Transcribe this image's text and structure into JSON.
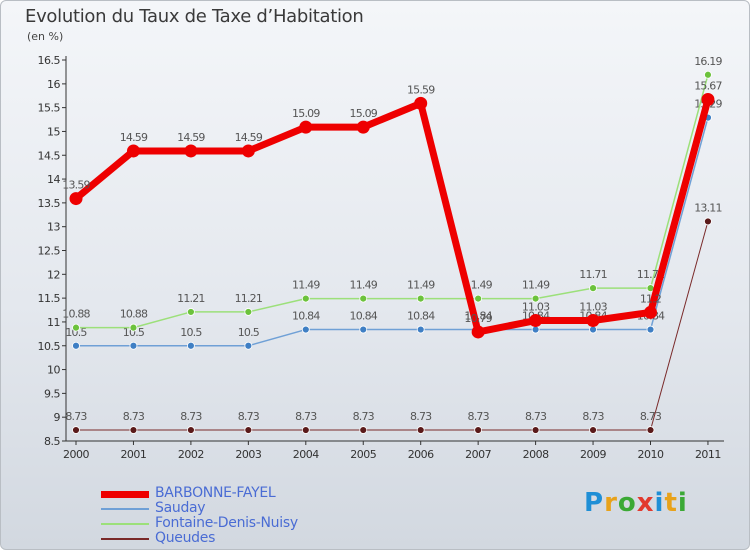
{
  "title": "Evolution du Taux de Taxe d’Habitation",
  "unit_label": "(en %)",
  "brand": {
    "letters": [
      {
        "ch": "P",
        "color": "#1f8fd6"
      },
      {
        "ch": "r",
        "color": "#e8a21a"
      },
      {
        "ch": "o",
        "color": "#3ba935"
      },
      {
        "ch": "x",
        "color": "#e23a2e"
      },
      {
        "ch": "i",
        "color": "#1f8fd6"
      },
      {
        "ch": "t",
        "color": "#e8a21a"
      },
      {
        "ch": "i",
        "color": "#3ba935"
      }
    ]
  },
  "chart_data": {
    "type": "line",
    "x": [
      "2000",
      "2001",
      "2002",
      "2003",
      "2004",
      "2005",
      "2006",
      "2007",
      "2008",
      "2009",
      "2010",
      "2011"
    ],
    "y_ticks": [
      "8.5",
      "9",
      "9.5",
      "10",
      "10.5",
      "11",
      "11.5",
      "12",
      "12.5",
      "13",
      "13.5",
      "14",
      "14.5",
      "15",
      "15.5",
      "16",
      "16.5"
    ],
    "ylim": [
      8.5,
      16.5
    ],
    "grid": false,
    "legend_position": "bottom-left",
    "series": [
      {
        "name": "Queudes",
        "color": "#7a2a2a",
        "point_color": "#5a1a1a",
        "width": 1,
        "values": [
          8.73,
          8.73,
          8.73,
          8.73,
          8.73,
          8.73,
          8.73,
          8.73,
          8.73,
          8.73,
          8.73,
          13.11
        ],
        "labels": [
          "8.73",
          "8.73",
          "8.73",
          "8.73",
          "8.73",
          "8.73",
          "8.73",
          "8.73",
          "8.73",
          "8.73",
          "8.73",
          "13.11"
        ]
      },
      {
        "name": "Sauday",
        "color": "#6fa0d6",
        "point_color": "#3f7fc4",
        "width": 1.5,
        "values": [
          10.5,
          10.5,
          10.5,
          10.5,
          10.84,
          10.84,
          10.84,
          10.84,
          10.84,
          10.84,
          10.84,
          15.29
        ],
        "labels": [
          "10.5",
          "10.5",
          "10.5",
          "10.5",
          "10.84",
          "10.84",
          "10.84",
          "10.84",
          "10.84",
          "10.84",
          "10.84",
          "15.29"
        ]
      },
      {
        "name": "Fontaine-Denis-Nuisy",
        "color": "#9ce07a",
        "point_color": "#6cc23c",
        "width": 1.5,
        "values": [
          10.88,
          10.88,
          11.21,
          11.21,
          11.49,
          11.49,
          11.49,
          11.49,
          11.49,
          11.71,
          11.71,
          16.19
        ],
        "labels": [
          "10.88",
          "10.88",
          "11.21",
          "11.21",
          "11.49",
          "11.49",
          "11.49",
          "11.49",
          "11.49",
          "11.71",
          "11.71",
          "16.19"
        ]
      },
      {
        "name": "BARBONNE-FAYEL",
        "color": "#ee0000",
        "point_color": "#ee0000",
        "width": 7,
        "values": [
          13.59,
          14.59,
          14.59,
          14.59,
          15.09,
          15.09,
          15.59,
          10.79,
          11.03,
          11.03,
          11.2,
          15.67
        ],
        "labels": [
          "13.59",
          "14.59",
          "14.59",
          "14.59",
          "15.09",
          "15.09",
          "15.59",
          "10.79",
          "11.03",
          "11.03",
          "11.2",
          "15.67"
        ]
      }
    ],
    "legend_order": [
      "BARBONNE-FAYEL",
      "Sauday",
      "Fontaine-Denis-Nuisy",
      "Queudes"
    ]
  }
}
